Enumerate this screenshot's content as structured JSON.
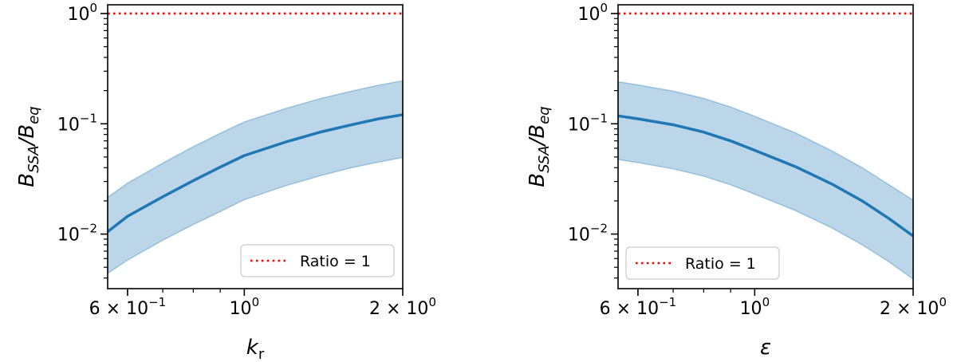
{
  "chart_data": [
    {
      "type": "line",
      "title": "",
      "xlabel": "k",
      "xlabel_sub": "r",
      "xlabel_style": "italic",
      "ylabel": "B",
      "ylabel_sub1": "SSA",
      "ylabel_mid": "/B",
      "ylabel_sub2": "eq",
      "xscale": "log",
      "yscale": "log",
      "xlim": [
        0.55,
        2.0
      ],
      "ylim": [
        0.0032,
        1.2
      ],
      "xticks": [
        {
          "value": 0.6,
          "mantissa": "6 × 10",
          "exp": "−1"
        },
        {
          "value": 1.0,
          "mantissa": "10",
          "exp": "0"
        },
        {
          "value": 2.0,
          "mantissa": "2 × 10",
          "exp": "0"
        }
      ],
      "yticks": [
        {
          "value": 0.01,
          "mantissa": "10",
          "exp": "−2"
        },
        {
          "value": 0.1,
          "mantissa": "10",
          "exp": "−1"
        },
        {
          "value": 1.0,
          "mantissa": "10",
          "exp": "0"
        }
      ],
      "reference_line": {
        "y": 1.0,
        "label": "Ratio = 1",
        "color": "#ff0000",
        "style": "dotted"
      },
      "series": [
        {
          "type": "line",
          "color": "#1f77b4",
          "x": [
            0.55,
            0.6,
            0.7,
            0.8,
            0.9,
            1.0,
            1.2,
            1.4,
            1.6,
            1.8,
            2.0
          ],
          "y": [
            0.0105,
            0.0145,
            0.0218,
            0.0305,
            0.0405,
            0.0515,
            0.0685,
            0.0845,
            0.098,
            0.111,
            0.121
          ]
        }
      ],
      "band": {
        "color": "#1f77b4",
        "opacity": 0.3,
        "x": [
          0.55,
          0.6,
          0.7,
          0.8,
          0.9,
          1.0,
          1.2,
          1.4,
          1.6,
          1.8,
          2.0
        ],
        "lower": [
          0.0044,
          0.0058,
          0.0088,
          0.0122,
          0.016,
          0.0205,
          0.0275,
          0.034,
          0.04,
          0.045,
          0.0495
        ],
        "upper": [
          0.0215,
          0.029,
          0.044,
          0.062,
          0.082,
          0.104,
          0.138,
          0.17,
          0.198,
          0.224,
          0.245
        ]
      },
      "legend": {
        "position": "lower-right"
      },
      "grid": false
    },
    {
      "type": "line",
      "title": "",
      "xlabel": "ε",
      "xlabel_sub": "",
      "xlabel_style": "italic",
      "ylabel": "B",
      "ylabel_sub1": "SSA",
      "ylabel_mid": "/B",
      "ylabel_sub2": "eq",
      "xscale": "log",
      "yscale": "log",
      "xlim": [
        0.55,
        2.0
      ],
      "ylim": [
        0.0032,
        1.2
      ],
      "xticks": [
        {
          "value": 0.6,
          "mantissa": "6 × 10",
          "exp": "−1"
        },
        {
          "value": 1.0,
          "mantissa": "10",
          "exp": "0"
        },
        {
          "value": 2.0,
          "mantissa": "2 × 10",
          "exp": "0"
        }
      ],
      "yticks": [
        {
          "value": 0.01,
          "mantissa": "10",
          "exp": "−2"
        },
        {
          "value": 0.1,
          "mantissa": "10",
          "exp": "−1"
        },
        {
          "value": 1.0,
          "mantissa": "10",
          "exp": "0"
        }
      ],
      "reference_line": {
        "y": 1.0,
        "label": "Ratio = 1",
        "color": "#ff0000",
        "style": "dotted"
      },
      "series": [
        {
          "type": "line",
          "color": "#1f77b4",
          "x": [
            0.55,
            0.6,
            0.7,
            0.8,
            0.9,
            1.0,
            1.2,
            1.4,
            1.6,
            1.8,
            2.0
          ],
          "y": [
            0.118,
            0.111,
            0.098,
            0.084,
            0.07,
            0.0575,
            0.0405,
            0.0285,
            0.02,
            0.0138,
            0.0096
          ]
        }
      ],
      "band": {
        "color": "#1f77b4",
        "opacity": 0.3,
        "x": [
          0.55,
          0.6,
          0.7,
          0.8,
          0.9,
          1.0,
          1.2,
          1.4,
          1.6,
          1.8,
          2.0
        ],
        "lower": [
          0.0475,
          0.0445,
          0.039,
          0.0335,
          0.028,
          0.023,
          0.0162,
          0.0114,
          0.008,
          0.0056,
          0.0039
        ],
        "upper": [
          0.24,
          0.225,
          0.198,
          0.17,
          0.142,
          0.117,
          0.082,
          0.057,
          0.04,
          0.028,
          0.0203
        ]
      },
      "legend": {
        "position": "lower-left"
      },
      "grid": false
    }
  ]
}
